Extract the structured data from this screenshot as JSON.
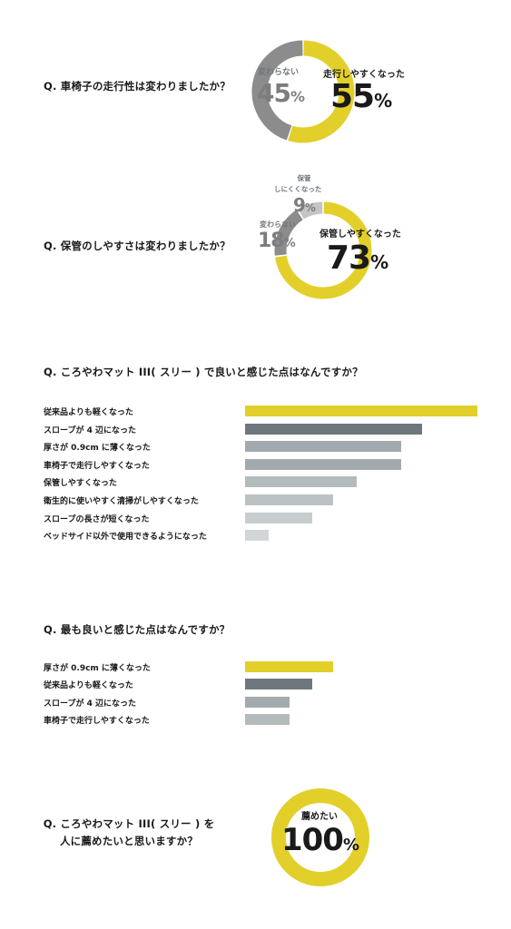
{
  "q1": {
    "question": "Q. 車椅子の走行性は変わりましたか？",
    "slices": [
      {
        "label": "走行しやすくなった",
        "value": 55,
        "color": "#e2cf2a"
      },
      {
        "label": "変わらない",
        "value": 45,
        "color": "#8c8c8c"
      }
    ],
    "value_big": "55",
    "value_small": "45",
    "unit": "%"
  },
  "q2": {
    "question": "Q. 保管のしやすさは変わりましたか？",
    "slices": [
      {
        "label": "保管しやすくなった",
        "value": 73,
        "color": "#e2cf2a"
      },
      {
        "label": "変わらない",
        "value": 18,
        "color": "#8c8c8c"
      },
      {
        "label": "保管しにくくなった",
        "value": 9,
        "color": "#c4c4c4"
      }
    ],
    "label_big": "保管しやすくなった",
    "value_big": "73",
    "label_mid": "変わらない",
    "value_mid": "18",
    "label_small_1": "保管",
    "label_small_2": "しにくくなった",
    "value_small": "9",
    "unit": "%"
  },
  "q3": {
    "question": "Q. ころやわマット III( スリー ) で良いと感じた点はなんですか？",
    "chart_data": {
      "type": "bar",
      "categories": [
        "従来品よりも軽くなった",
        "スロープが 4 辺になった",
        "厚さが 0.9cm に薄くなった",
        "車椅子で走行しやすくなった",
        "保管しやすくなった",
        "衛生的に使いやすく清掃がしやすくなった",
        "スロープの長さが短くなった",
        "ベッドサイド以外で使用できるようになった"
      ],
      "values": [
        100,
        76,
        67,
        67,
        48,
        38,
        29,
        10
      ],
      "colors": [
        "#e2cf2a",
        "#6e787c",
        "#a2aaad",
        "#a2aaad",
        "#b4bbbd",
        "#bcc2c4",
        "#c7ccce",
        "#d2d6d8"
      ]
    }
  },
  "q4": {
    "question": "Q. 最も良いと感じた点はなんですか？",
    "chart_data": {
      "type": "bar",
      "categories": [
        "厚さが 0.9cm に薄くなった",
        "従来品よりも軽くなった",
        "スロープが 4 辺になった",
        "車椅子で走行しやすくなった"
      ],
      "values": [
        38,
        29,
        19,
        19
      ],
      "colors": [
        "#e2cf2a",
        "#6e787c",
        "#a2aaad",
        "#b4bbbd"
      ]
    }
  },
  "q5": {
    "question_line1": "Q. ころやわマット III( スリー ) を",
    "question_line2": "人に薦めたいと思いますか？",
    "slices": [
      {
        "label": "薦めたい",
        "value": 100,
        "color": "#e2cf2a"
      }
    ],
    "label": "薦めたい",
    "value": "100",
    "unit": "%"
  }
}
